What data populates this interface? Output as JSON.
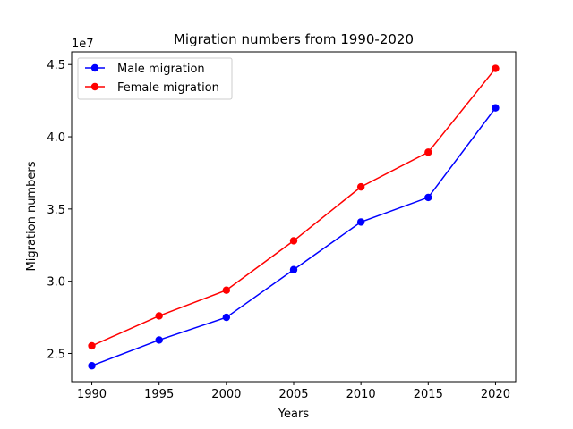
{
  "chart_data": {
    "type": "line",
    "title": "Migration numbers from 1990-2020",
    "xlabel": "Years",
    "ylabel": "Migration numbers",
    "y_offset_label": "1e7",
    "x": [
      1990,
      1995,
      2000,
      2005,
      2010,
      2015,
      2020
    ],
    "x_ticks": [
      "1990",
      "1995",
      "2000",
      "2005",
      "2010",
      "2015",
      "2020"
    ],
    "y_ticks": [
      {
        "value": 25000000,
        "label": "2.5"
      },
      {
        "value": 30000000,
        "label": "3.0"
      },
      {
        "value": 35000000,
        "label": "3.5"
      },
      {
        "value": 40000000,
        "label": "4.0"
      },
      {
        "value": 45000000,
        "label": "4.5"
      }
    ],
    "xlim": [
      1988.5,
      2021.5
    ],
    "ylim": [
      23050000,
      45880000
    ],
    "grid": false,
    "legend_position": "top-left",
    "series": [
      {
        "name": "Male migration",
        "color": "#0000ff",
        "values": [
          24150000,
          25930000,
          27500000,
          30800000,
          34100000,
          35800000,
          42000000
        ]
      },
      {
        "name": "Female migration",
        "color": "#ff0000",
        "values": [
          25530000,
          27600000,
          29380000,
          32800000,
          36530000,
          38930000,
          44730000
        ]
      }
    ]
  }
}
